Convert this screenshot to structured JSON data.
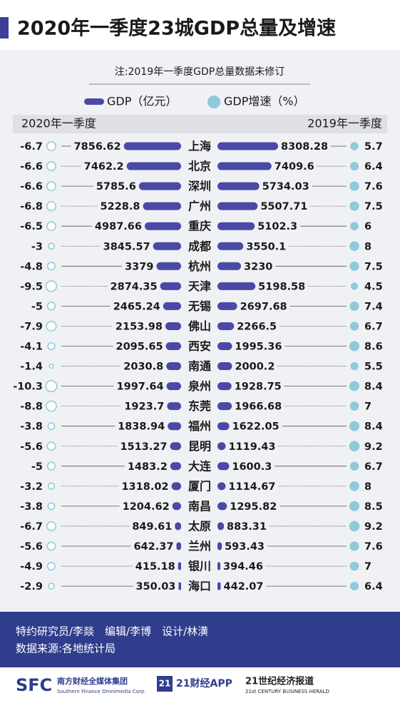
{
  "header": {
    "title": "2020年一季度23城GDP总量及增速"
  },
  "chart_data": {
    "type": "butterfly",
    "note": "注:2019年一季度GDP总量数据未修订",
    "legend": [
      "GDP（亿元）",
      "GDP增速（%）"
    ],
    "bar_color": "#4a49a6",
    "bubble_color": "#8ecadb",
    "categories": [
      "上海",
      "北京",
      "深圳",
      "广州",
      "重庆",
      "成都",
      "杭州",
      "天津",
      "无锡",
      "佛山",
      "西安",
      "南通",
      "泉州",
      "东莞",
      "福州",
      "昆明",
      "大连",
      "厦门",
      "南昌",
      "太原",
      "兰州",
      "银川",
      "海口"
    ],
    "series": [
      {
        "name": "2020年一季度",
        "gdp": [
          7856.62,
          7462.2,
          5785.6,
          5228.8,
          4987.66,
          3845.57,
          3379,
          2874.35,
          2465.24,
          2153.98,
          2095.65,
          2030.8,
          1997.64,
          1923.7,
          1838.94,
          1513.27,
          1483.2,
          1318.02,
          1204.62,
          849.61,
          642.37,
          415.18,
          350.03
        ],
        "growth": [
          -6.7,
          -6.6,
          -6.6,
          -6.8,
          -6.5,
          -3,
          -4.8,
          -9.5,
          -5,
          -7.9,
          -4.1,
          -1.4,
          -10.3,
          -8.8,
          -3.8,
          -5.6,
          -5,
          -3.2,
          -3.8,
          -6.7,
          -5.6,
          -4.9,
          -2.9
        ]
      },
      {
        "name": "2019年一季度",
        "gdp": [
          8308.28,
          7409.6,
          5734.03,
          5507.71,
          5102.3,
          3550.1,
          3230,
          5198.58,
          2697.68,
          2266.5,
          1995.36,
          2000.2,
          1928.75,
          1966.68,
          1622.05,
          1119.43,
          1600.3,
          1114.67,
          1295.82,
          883.31,
          593.43,
          394.46,
          442.07
        ],
        "growth": [
          5.7,
          6.4,
          7.6,
          7.5,
          6,
          8,
          7.5,
          4.5,
          7.4,
          6.7,
          8.6,
          5.5,
          8.4,
          7,
          8.4,
          9.2,
          6.7,
          8,
          8.5,
          9.2,
          7.6,
          7,
          6.4
        ]
      }
    ]
  },
  "footer": {
    "credits": "特约研究员/李燚　编辑/李博　设计/林潢",
    "source": "数据来源:各地统计局",
    "logos": [
      "SFC",
      "南方财经全媒体集团",
      "Southern Finance Omnimedia Corp.",
      "21",
      "21财经APP",
      "21世纪经济报道",
      "21st CENTURY BUSINESS HERALD"
    ]
  }
}
